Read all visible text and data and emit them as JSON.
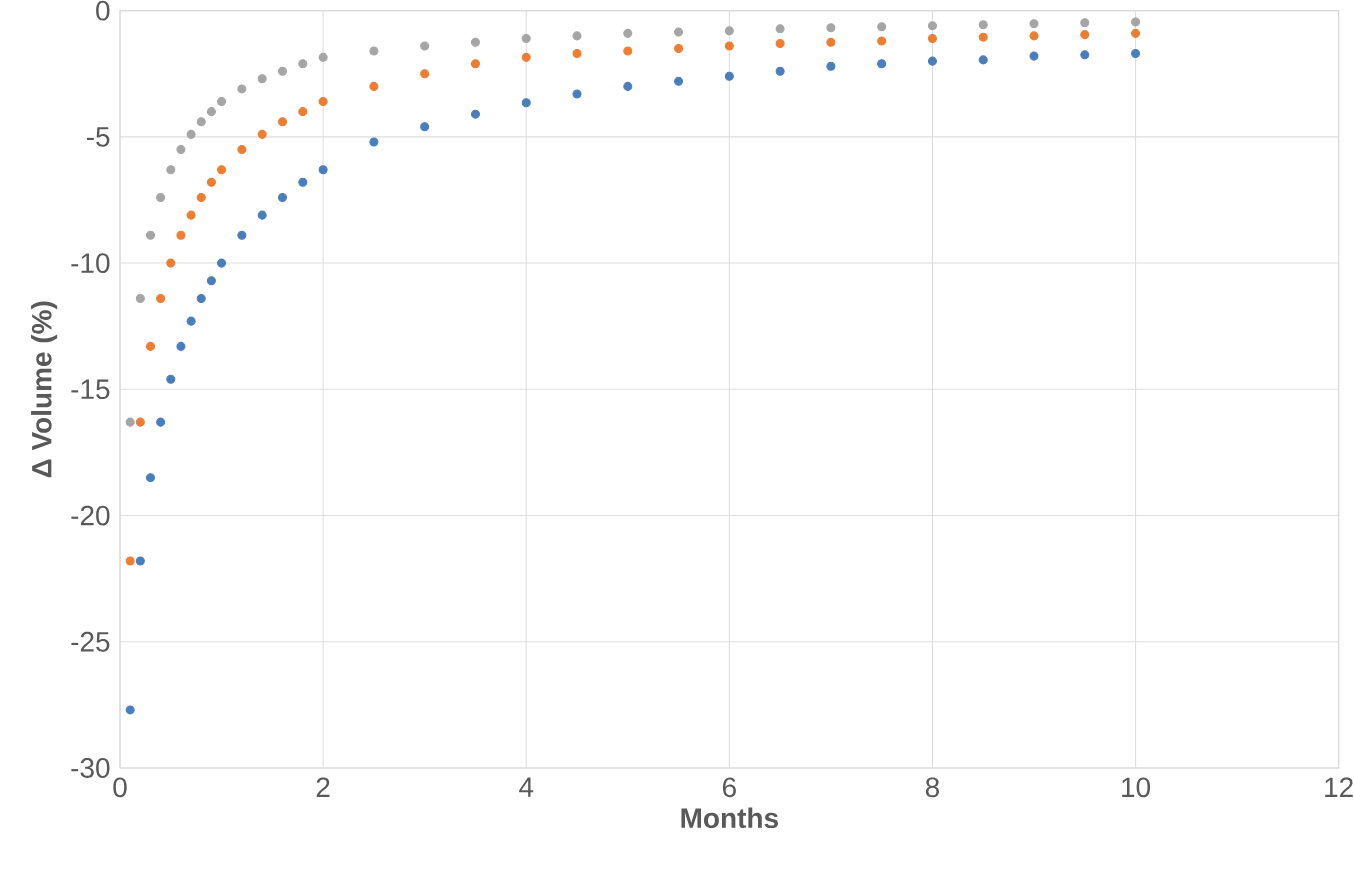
{
  "chart_data": {
    "type": "scatter",
    "xlabel": "Months",
    "ylabel": "Δ Volume (%)",
    "x": [
      0.1,
      0.2,
      0.3,
      0.4,
      0.5,
      0.6,
      0.7,
      0.8,
      0.9,
      1.0,
      1.2,
      1.4,
      1.6,
      1.8,
      2.0,
      2.5,
      3,
      3.5,
      4,
      4.5,
      5,
      5.5,
      6,
      6.5,
      7,
      7.5,
      8,
      8.5,
      9,
      9.5,
      10
    ],
    "series": [
      {
        "color": "#4a7ebb",
        "values": [
          -27.7,
          -21.8,
          -18.5,
          -16.3,
          -14.6,
          -13.3,
          -12.3,
          -11.4,
          -10.7,
          -10.0,
          -8.9,
          -8.1,
          -7.4,
          -6.8,
          -6.3,
          -5.2,
          -4.6,
          -4.1,
          -3.65,
          -3.3,
          -3.0,
          -2.8,
          -2.6,
          -2.4,
          -2.2,
          -2.1,
          -2.0,
          -1.95,
          -1.8,
          -1.75,
          -1.7
        ]
      },
      {
        "color": "#ed7d31",
        "values": [
          -21.8,
          -16.3,
          -13.3,
          -11.4,
          -10.0,
          -8.9,
          -8.1,
          -7.4,
          -6.8,
          -6.3,
          -5.5,
          -4.9,
          -4.4,
          -4.0,
          -3.6,
          -3.0,
          -2.5,
          -2.1,
          -1.85,
          -1.7,
          -1.6,
          -1.5,
          -1.4,
          -1.3,
          -1.25,
          -1.2,
          -1.1,
          -1.05,
          -1.0,
          -0.95,
          -0.9
        ]
      },
      {
        "color": "#a5a5a5",
        "values": [
          -16.3,
          -11.4,
          -8.9,
          -7.4,
          -6.3,
          -5.5,
          -4.9,
          -4.4,
          -4.0,
          -3.6,
          -3.1,
          -2.7,
          -2.4,
          -2.1,
          -1.85,
          -1.6,
          -1.4,
          -1.25,
          -1.1,
          -1.0,
          -0.9,
          -0.85,
          -0.8,
          -0.72,
          -0.68,
          -0.64,
          -0.6,
          -0.56,
          -0.52,
          -0.48,
          -0.45
        ]
      }
    ],
    "xlim": [
      0,
      12
    ],
    "xticks": [
      0,
      2,
      4,
      6,
      8,
      10,
      12
    ],
    "ylim": [
      -30,
      0
    ],
    "yticks": [
      -30,
      -25,
      -20,
      -15,
      -10,
      -5,
      0
    ],
    "grid": true,
    "marker": "circle"
  }
}
